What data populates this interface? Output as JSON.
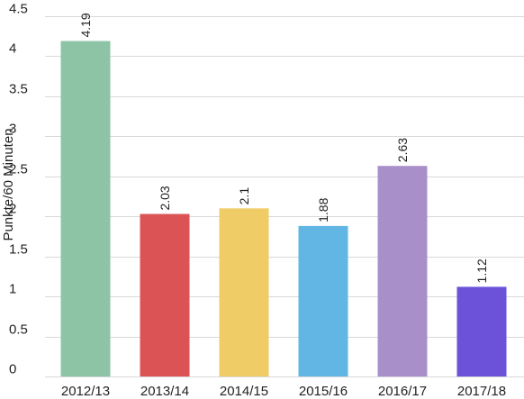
{
  "chart_data": {
    "type": "bar",
    "categories": [
      "2012/13",
      "2013/14",
      "2014/15",
      "2015/16",
      "2016/17",
      "2017/18"
    ],
    "values": [
      4.19,
      2.03,
      2.1,
      1.88,
      2.63,
      1.12
    ],
    "value_labels": [
      "4.19",
      "2.03",
      "2.1",
      "1.88",
      "2.63",
      "1.12"
    ],
    "colors": [
      "#8dc4a6",
      "#dc5356",
      "#f0cc67",
      "#62b6e4",
      "#a98fca",
      "#6b52d9"
    ],
    "ylabel": "Punkte/60 Minuten",
    "ylim": [
      0,
      4.5
    ],
    "yticks": [
      0,
      0.5,
      1,
      1.5,
      2,
      2.5,
      3,
      3.5,
      4,
      4.5
    ],
    "ytick_labels": [
      "0",
      "0.5",
      "1",
      "1.5",
      "2",
      "2.5",
      "3",
      "3.5",
      "4",
      "4.5"
    ],
    "grid": true,
    "legend": "none"
  }
}
